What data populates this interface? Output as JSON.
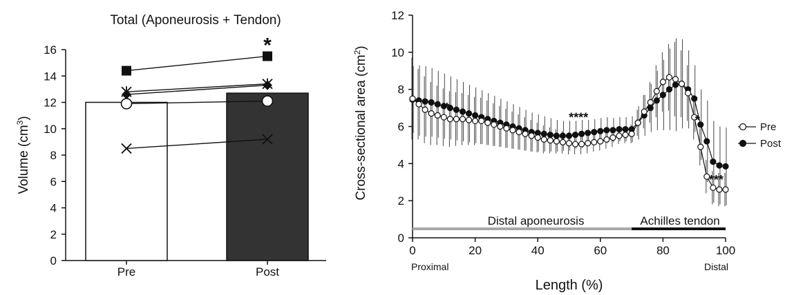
{
  "chart_data": [
    {
      "type": "bar",
      "title": "Total (Aponeurosis + Tendon)",
      "ylabel": "Volume (cm",
      "ylabel_sup": "3",
      "ylabel_close": ")",
      "xlabel": "",
      "ylim": [
        0,
        16
      ],
      "yticks": [
        "0",
        "2",
        "4",
        "6",
        "8",
        "10",
        "12",
        "14",
        "16"
      ],
      "categories": [
        "Pre",
        "Post"
      ],
      "values": [
        12.0,
        12.7
      ],
      "bar_colors": [
        "#ffffff",
        "#333333"
      ],
      "significance": {
        "category": "Post",
        "label": "*"
      },
      "individuals": [
        {
          "marker": "square",
          "values": [
            14.4,
            15.5
          ]
        },
        {
          "marker": "asterisk",
          "values": [
            12.8,
            13.4
          ]
        },
        {
          "marker": "diamond",
          "values": [
            12.6,
            13.3
          ]
        },
        {
          "marker": "circle",
          "values": [
            11.9,
            12.1
          ]
        },
        {
          "marker": "x",
          "values": [
            8.5,
            9.2
          ]
        }
      ]
    },
    {
      "type": "line",
      "title": "",
      "xlabel": "Length (%)",
      "ylabel": "Cross-sectional area (cm",
      "ylabel_sup": "2",
      "ylabel_close": ")",
      "xlim": [
        0,
        100
      ],
      "ylim": [
        0,
        12
      ],
      "xticks": [
        "0",
        "20",
        "40",
        "60",
        "80",
        "100"
      ],
      "yticks": [
        "0",
        "2",
        "4",
        "6",
        "8",
        "10",
        "12"
      ],
      "x_end_labels": {
        "left": "Proximal",
        "right": "Distal"
      },
      "regions": [
        {
          "label": "Distal aponeurosis",
          "from": 0,
          "to": 70,
          "color": "#a8a8a8"
        },
        {
          "label": "Achilles tendon",
          "from": 70,
          "to": 100,
          "color": "#111111"
        }
      ],
      "annotations": [
        {
          "x": 11,
          "y": 7.1,
          "text": "*"
        },
        {
          "x": 53,
          "y": 6.55,
          "text": "****"
        },
        {
          "x": 91,
          "y": 6.4,
          "text": "*"
        },
        {
          "x": 97,
          "y": 3.2,
          "text": "***"
        }
      ],
      "x": [
        0,
        2,
        4,
        6,
        8,
        10,
        12,
        14,
        16,
        18,
        20,
        22,
        24,
        26,
        28,
        30,
        32,
        34,
        36,
        38,
        40,
        42,
        44,
        46,
        48,
        50,
        52,
        54,
        56,
        58,
        60,
        62,
        64,
        66,
        68,
        70,
        72,
        74,
        76,
        78,
        80,
        82,
        84,
        86,
        88,
        90,
        92,
        94,
        96,
        98,
        100
      ],
      "series": [
        {
          "name": "Pre",
          "marker": "open-circle",
          "values": [
            7.5,
            7.2,
            6.9,
            6.7,
            6.6,
            6.5,
            6.4,
            6.4,
            6.4,
            6.35,
            6.3,
            6.3,
            6.2,
            6.1,
            6.0,
            5.9,
            5.8,
            5.7,
            5.6,
            5.5,
            5.4,
            5.3,
            5.25,
            5.2,
            5.15,
            5.1,
            5.05,
            5.05,
            5.1,
            5.15,
            5.2,
            5.3,
            5.4,
            5.5,
            5.55,
            5.6,
            6.2,
            6.8,
            7.3,
            7.9,
            8.4,
            8.65,
            8.55,
            8.3,
            7.8,
            6.5,
            4.9,
            3.3,
            2.7,
            2.6,
            2.6
          ],
          "errors": [
            2.2,
            1.9,
            1.8,
            1.7,
            1.6,
            1.55,
            1.5,
            1.45,
            1.4,
            1.35,
            1.3,
            1.25,
            1.2,
            1.15,
            1.1,
            1.05,
            1.0,
            0.95,
            0.9,
            0.85,
            0.8,
            0.75,
            0.7,
            0.65,
            0.6,
            0.6,
            0.55,
            0.55,
            0.55,
            0.5,
            0.5,
            0.5,
            0.5,
            0.45,
            0.45,
            0.5,
            0.7,
            0.9,
            1.1,
            1.4,
            1.6,
            1.8,
            2.0,
            1.8,
            1.5,
            1.2,
            1.0,
            0.9,
            0.9,
            0.9,
            0.9
          ]
        },
        {
          "name": "Post",
          "marker": "filled-circle",
          "values": [
            7.45,
            7.4,
            7.35,
            7.3,
            7.2,
            7.1,
            7.0,
            6.9,
            6.8,
            6.7,
            6.6,
            6.5,
            6.4,
            6.3,
            6.2,
            6.1,
            6.0,
            5.9,
            5.8,
            5.7,
            5.65,
            5.6,
            5.55,
            5.5,
            5.5,
            5.5,
            5.55,
            5.6,
            5.65,
            5.7,
            5.75,
            5.8,
            5.8,
            5.85,
            5.85,
            5.85,
            6.2,
            6.6,
            7.0,
            7.4,
            7.7,
            8.0,
            8.25,
            8.3,
            8.0,
            7.5,
            6.1,
            5.2,
            4.1,
            3.9,
            3.85
          ],
          "errors": [
            1.8,
            1.9,
            1.9,
            1.85,
            1.8,
            1.75,
            1.7,
            1.65,
            1.6,
            1.55,
            1.5,
            1.45,
            1.4,
            1.35,
            1.3,
            1.25,
            1.2,
            1.15,
            1.1,
            1.05,
            1.0,
            0.95,
            0.9,
            0.85,
            0.8,
            0.8,
            0.75,
            0.75,
            0.7,
            0.7,
            0.7,
            0.7,
            0.65,
            0.65,
            0.65,
            0.7,
            0.9,
            1.1,
            1.3,
            1.6,
            1.9,
            2.2,
            2.5,
            2.4,
            2.1,
            1.8,
            1.9,
            2.2,
            2.2,
            2.1,
            2.1
          ]
        }
      ],
      "legend": {
        "position": "right"
      }
    }
  ]
}
